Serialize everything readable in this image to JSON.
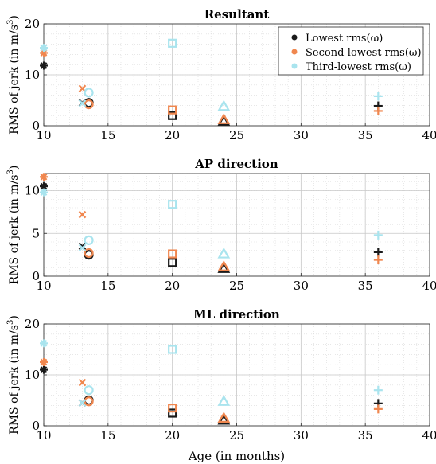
{
  "figure": {
    "xlabel": "Age (in months)",
    "legend": {
      "placement": "top-right of first panel",
      "entries": [
        "Lowest rms(ω)",
        "Second-lowest rms(ω)",
        "Third-lowest rms(ω)"
      ]
    },
    "colors": {
      "lowest": "#1a1a1a",
      "second": "#f0874f",
      "third": "#a9e4ee"
    }
  },
  "chart_data": [
    {
      "type": "scatter",
      "title": "Resultant",
      "ylabel_prefix": "RMS of jerk (in m/s",
      "ylabel_exp": "3",
      "ylabel_suffix": ")",
      "xlim": [
        10,
        40
      ],
      "ylim": [
        0,
        20
      ],
      "xticks": [
        10,
        15,
        20,
        25,
        30,
        35,
        40
      ],
      "yticks": [
        0,
        10,
        20
      ],
      "grid": true,
      "series": [
        {
          "name": "Lowest rms(ω)",
          "points": [
            {
              "x": 10,
              "y": 11.8,
              "marker": "asterisk"
            },
            {
              "x": 13,
              "y": 4.5,
              "marker": "x"
            },
            {
              "x": 13.5,
              "y": 4.5,
              "marker": "circle"
            },
            {
              "x": 20,
              "y": 2.0,
              "marker": "square"
            },
            {
              "x": 24,
              "y": 0.9,
              "marker": "triangle"
            },
            {
              "x": 36,
              "y": 3.9,
              "marker": "plus"
            }
          ]
        },
        {
          "name": "Second-lowest rms(ω)",
          "points": [
            {
              "x": 10,
              "y": 14.3,
              "marker": "asterisk"
            },
            {
              "x": 13,
              "y": 7.3,
              "marker": "x"
            },
            {
              "x": 13.5,
              "y": 4.2,
              "marker": "circle"
            },
            {
              "x": 20,
              "y": 3.1,
              "marker": "square"
            },
            {
              "x": 24,
              "y": 1.2,
              "marker": "triangle"
            },
            {
              "x": 36,
              "y": 2.9,
              "marker": "plus"
            }
          ]
        },
        {
          "name": "Third-lowest rms(ω)",
          "points": [
            {
              "x": 10,
              "y": 15.3,
              "marker": "asterisk"
            },
            {
              "x": 13,
              "y": 4.4,
              "marker": "x"
            },
            {
              "x": 13.5,
              "y": 6.5,
              "marker": "circle"
            },
            {
              "x": 20,
              "y": 16.2,
              "marker": "square"
            },
            {
              "x": 24,
              "y": 3.8,
              "marker": "triangle"
            },
            {
              "x": 36,
              "y": 5.8,
              "marker": "plus"
            }
          ]
        }
      ]
    },
    {
      "type": "scatter",
      "title": "AP direction",
      "ylabel_prefix": "RMS of jerk (in m/s",
      "ylabel_exp": "3",
      "ylabel_suffix": ")",
      "xlim": [
        10,
        40
      ],
      "ylim": [
        0,
        12
      ],
      "xticks": [
        10,
        15,
        20,
        25,
        30,
        35,
        40
      ],
      "yticks": [
        0,
        5,
        10
      ],
      "grid": true,
      "series": [
        {
          "name": "Lowest rms(ω)",
          "points": [
            {
              "x": 10,
              "y": 10.5,
              "marker": "asterisk"
            },
            {
              "x": 13,
              "y": 3.5,
              "marker": "x"
            },
            {
              "x": 13.5,
              "y": 2.5,
              "marker": "circle"
            },
            {
              "x": 20,
              "y": 1.6,
              "marker": "square"
            },
            {
              "x": 24,
              "y": 0.9,
              "marker": "triangle"
            },
            {
              "x": 36,
              "y": 2.8,
              "marker": "plus"
            }
          ]
        },
        {
          "name": "Second-lowest rms(ω)",
          "points": [
            {
              "x": 10,
              "y": 11.6,
              "marker": "asterisk"
            },
            {
              "x": 13,
              "y": 7.2,
              "marker": "x"
            },
            {
              "x": 13.5,
              "y": 2.7,
              "marker": "circle"
            },
            {
              "x": 20,
              "y": 2.6,
              "marker": "square"
            },
            {
              "x": 24,
              "y": 1.1,
              "marker": "triangle"
            },
            {
              "x": 36,
              "y": 1.9,
              "marker": "plus"
            }
          ]
        },
        {
          "name": "Third-lowest rms(ω)",
          "points": [
            {
              "x": 10,
              "y": 9.8,
              "marker": "asterisk"
            },
            {
              "x": 13,
              "y": 3.3,
              "marker": "x"
            },
            {
              "x": 13.5,
              "y": 4.2,
              "marker": "circle"
            },
            {
              "x": 20,
              "y": 8.4,
              "marker": "square"
            },
            {
              "x": 24,
              "y": 2.6,
              "marker": "triangle"
            },
            {
              "x": 36,
              "y": 4.8,
              "marker": "plus"
            }
          ]
        }
      ]
    },
    {
      "type": "scatter",
      "title": "ML direction",
      "ylabel_prefix": "RMS of jerk (in m/s",
      "ylabel_exp": "3",
      "ylabel_suffix": ")",
      "xlim": [
        10,
        40
      ],
      "ylim": [
        0,
        20
      ],
      "xticks": [
        10,
        15,
        20,
        25,
        30,
        35,
        40
      ],
      "yticks": [
        0,
        10,
        20
      ],
      "grid": true,
      "series": [
        {
          "name": "Lowest rms(ω)",
          "points": [
            {
              "x": 10,
              "y": 11.0,
              "marker": "asterisk"
            },
            {
              "x": 13,
              "y": 4.5,
              "marker": "x"
            },
            {
              "x": 13.5,
              "y": 5.0,
              "marker": "circle"
            },
            {
              "x": 20,
              "y": 2.5,
              "marker": "square"
            },
            {
              "x": 24,
              "y": 1.1,
              "marker": "triangle"
            },
            {
              "x": 36,
              "y": 4.4,
              "marker": "plus"
            }
          ]
        },
        {
          "name": "Second-lowest rms(ω)",
          "points": [
            {
              "x": 10,
              "y": 12.5,
              "marker": "asterisk"
            },
            {
              "x": 13,
              "y": 8.5,
              "marker": "x"
            },
            {
              "x": 13.5,
              "y": 4.8,
              "marker": "circle"
            },
            {
              "x": 20,
              "y": 3.5,
              "marker": "square"
            },
            {
              "x": 24,
              "y": 1.5,
              "marker": "triangle"
            },
            {
              "x": 36,
              "y": 3.3,
              "marker": "plus"
            }
          ]
        },
        {
          "name": "Third-lowest rms(ω)",
          "points": [
            {
              "x": 10,
              "y": 16.2,
              "marker": "asterisk"
            },
            {
              "x": 13,
              "y": 4.5,
              "marker": "x"
            },
            {
              "x": 13.5,
              "y": 7.0,
              "marker": "circle"
            },
            {
              "x": 20,
              "y": 15.0,
              "marker": "square"
            },
            {
              "x": 24,
              "y": 4.8,
              "marker": "triangle"
            },
            {
              "x": 36,
              "y": 7.0,
              "marker": "plus"
            }
          ]
        }
      ]
    }
  ]
}
